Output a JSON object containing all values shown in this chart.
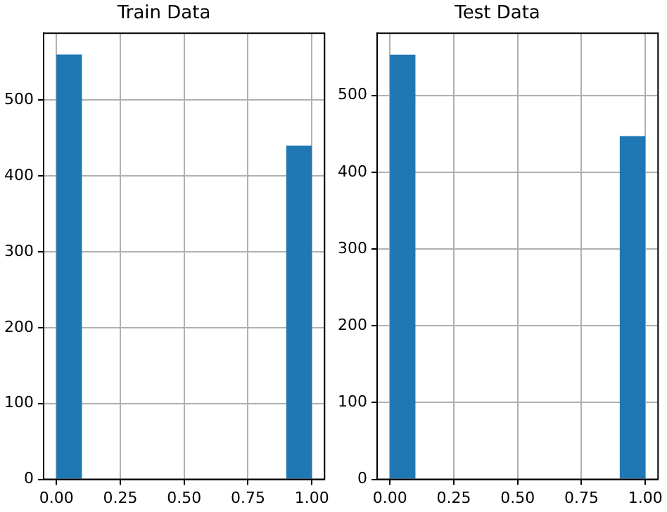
{
  "chart_data": [
    {
      "type": "histogram",
      "title": "Train Data",
      "bins": [
        0,
        0.1,
        0.2,
        0.3,
        0.4,
        0.5,
        0.6,
        0.7,
        0.8,
        0.9,
        1.0
      ],
      "values": [
        560,
        0,
        0,
        0,
        0,
        0,
        0,
        0,
        0,
        440
      ],
      "color": "#1f77b4",
      "xlim": [
        -0.05,
        1.05
      ],
      "xticks": [
        {
          "value": 0,
          "label": "0.00"
        },
        {
          "value": 0.25,
          "label": "0.25"
        },
        {
          "value": 0.5,
          "label": "0.50"
        },
        {
          "value": 0.75,
          "label": "0.75"
        },
        {
          "value": 1,
          "label": "1.00"
        }
      ],
      "ylim": [
        0,
        588
      ],
      "yticks": [
        0,
        100,
        200,
        300,
        400,
        500
      ],
      "grid": true
    },
    {
      "type": "histogram",
      "title": "Test Data",
      "bins": [
        0,
        0.1,
        0.2,
        0.3,
        0.4,
        0.5,
        0.6,
        0.7,
        0.8,
        0.9,
        1.0
      ],
      "values": [
        553,
        0,
        0,
        0,
        0,
        0,
        0,
        0,
        0,
        447
      ],
      "color": "#1f77b4",
      "xlim": [
        -0.05,
        1.05
      ],
      "xticks": [
        {
          "value": 0,
          "label": "0.00"
        },
        {
          "value": 0.25,
          "label": "0.25"
        },
        {
          "value": 0.5,
          "label": "0.50"
        },
        {
          "value": 0.75,
          "label": "0.75"
        },
        {
          "value": 1,
          "label": "1.00"
        }
      ],
      "ylim": [
        0,
        581
      ],
      "yticks": [
        0,
        100,
        200,
        300,
        400,
        500
      ],
      "grid": true
    }
  ]
}
